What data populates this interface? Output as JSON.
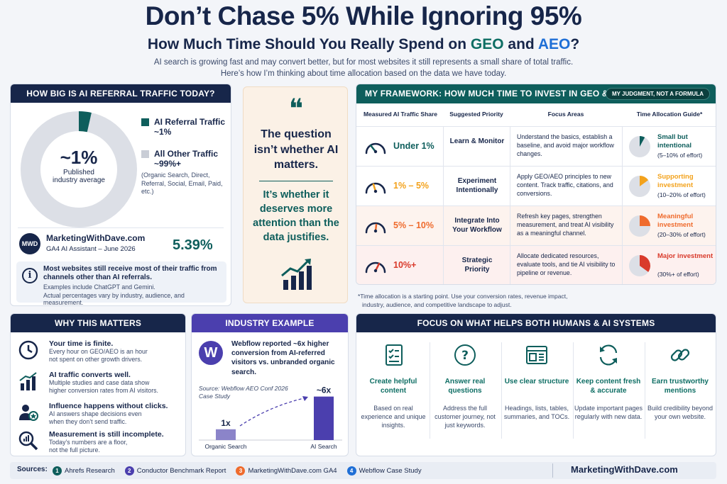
{
  "header": {
    "title": "Don’t Chase 5% While Ignoring 95%",
    "subtitle_pre": "How Much Time Should You Really Spend on ",
    "subtitle_geo": "GEO",
    "subtitle_and": " and ",
    "subtitle_aeo": "AEO",
    "subtitle_q": "?",
    "line1": "AI search is growing fast and may convert better, but for most websites it still represents a small share of total traffic.",
    "line2": "Here’s how I’m thinking about time allocation based on the data we have today."
  },
  "colors": {
    "navy": "#17264a",
    "teal": "#0e5e5c",
    "purple": "#4b3fae",
    "orange": "#f39c12",
    "red": "#d93a2b"
  },
  "referral": {
    "heading": "HOW BIG IS AI REFERRAL TRAFFIC TODAY?",
    "center_value": "~1%",
    "center_label_1": "Published",
    "center_label_2": "industry average",
    "ai_share": 1,
    "legend_ai_title": "AI Referral Traffic",
    "legend_ai_value": "~1%",
    "legend_other_title": "All Other Traffic",
    "legend_other_value": "~99%+",
    "legend_other_note": "(Organic Search, Direct, Referral, Social, Email, Paid, etc.)",
    "logo_text": "MWD",
    "site_name": "MarketingWithDave.com",
    "site_sub": "GA4 AI Assistant – June 2026",
    "site_value": "5.39%",
    "info_title": "Most websites still receive most of their traffic from channels other than AI referrals.",
    "info_line1": "Examples include ChatGPT and Gemini.",
    "info_line2": "Actual percentages vary by industry, audience, and measurement."
  },
  "quote": {
    "mark": "❝",
    "line1": "The question isn’t whether AI matters.",
    "line2": "It’s whether it deserves more attention than the data justifies."
  },
  "framework": {
    "heading": "MY FRAMEWORK: HOW MUCH TIME TO INVEST IN GEO & AEO",
    "badge": "MY JUDGMENT, NOT A FORMULA",
    "columns": [
      "Measured AI Traffic Share",
      "Suggested Priority",
      "Focus Areas",
      "Time Allocation Guide*"
    ],
    "rows": [
      {
        "share": "Under 1%",
        "priority": "Learn & Monitor",
        "focus": "Understand the basics, establish a baseline, and avoid major workflow changes.",
        "alloc_title": "Small but intentional",
        "alloc_range": "(5–10% of effort)",
        "fraction": 0.08,
        "color": "#0e5e5c",
        "bg": "#ffffff"
      },
      {
        "share": "1% – 5%",
        "priority": "Experiment Intentionally",
        "focus": "Apply GEO/AEO principles to new content. Track traffic, citations, and conversions.",
        "alloc_title": "Supporting investment",
        "alloc_range": "(10–20% of effort)",
        "fraction": 0.15,
        "color": "#f3a21c",
        "bg": "#ffffff"
      },
      {
        "share": "5% – 10%",
        "priority": "Integrate Into Your Workflow",
        "focus": "Refresh key pages, strengthen measurement, and treat AI visibility as a meaningful channel.",
        "alloc_title": "Meaningful investment",
        "alloc_range": "(20–30% of effort)",
        "fraction": 0.25,
        "color": "#ef6b2d",
        "bg": "#fdf3ee"
      },
      {
        "share": "10%+",
        "priority": "Strategic Priority",
        "focus": "Allocate dedicated resources, evaluate tools, and tie AI visibility to pipeline or revenue.",
        "alloc_title": "Major investment",
        "alloc_range": "(30%+ of effort)",
        "fraction": 0.35,
        "color": "#d93a2b",
        "bg": "#fdf0ef"
      }
    ],
    "footnote1": "*Time allocation is a starting point. Use your conversion rates, revenue impact,",
    "footnote2": "industry, audience, and competitive landscape to adjust."
  },
  "why": {
    "heading": "WHY THIS MATTERS",
    "items": [
      {
        "icon": "clock-icon",
        "title": "Your time is finite.",
        "desc1": "Every hour on GEO/AEO is an hour",
        "desc2": "not spent on other growth drivers."
      },
      {
        "icon": "chart-up-icon",
        "title": "AI traffic converts well.",
        "desc1": "Multiple studies and case data show",
        "desc2": "higher conversion rates from AI visitors."
      },
      {
        "icon": "users-icon",
        "title": "Influence happens without clicks.",
        "desc1": "AI answers shape decisions even",
        "desc2": "when they don’t send traffic."
      },
      {
        "icon": "magnifier-chart-icon",
        "title": "Measurement is still incomplete.",
        "desc1": "Today’s numbers are a floor,",
        "desc2": "not the full picture."
      }
    ]
  },
  "industry": {
    "heading": "INDUSTRY EXAMPLE",
    "logo": "W",
    "text": "Webflow reported ~6x higher conversion from AI-referred visitors vs. unbranded organic search.",
    "source": "Source: Webflow AEO Conf 2026 Case Study",
    "chart_data": {
      "type": "bar",
      "categories": [
        "Organic Search",
        "AI Search"
      ],
      "values": [
        1,
        6
      ],
      "data_labels": [
        "1x",
        "~6x"
      ],
      "ylim": [
        0,
        6.5
      ]
    }
  },
  "focus": {
    "heading": "FOCUS ON WHAT HELPS BOTH HUMANS & AI SYSTEMS",
    "items": [
      {
        "icon": "checklist-icon",
        "title": "Create helpful content",
        "desc": "Based on real experience and unique insights."
      },
      {
        "icon": "question-icon",
        "title": "Answer real questions",
        "desc": "Address the full customer journey, not just keywords."
      },
      {
        "icon": "layout-icon",
        "title": "Use clear structure",
        "desc": "Headings, lists, tables, summaries, and TOCs."
      },
      {
        "icon": "refresh-icon",
        "title": "Keep content fresh & accurate",
        "desc": "Update important pages regularly with new data."
      },
      {
        "icon": "link-icon",
        "title": "Earn trustworthy mentions",
        "desc": "Build credibility beyond your own website."
      }
    ]
  },
  "footer": {
    "label": "Sources:",
    "sources": [
      {
        "num": "1",
        "name": "Ahrefs Research",
        "color": "#0e5e5c"
      },
      {
        "num": "2",
        "name": "Conductor Benchmark Report",
        "color": "#4b3fae"
      },
      {
        "num": "3",
        "name": "MarketingWithDave.com GA4",
        "color": "#ef6b2d"
      },
      {
        "num": "4",
        "name": "Webflow Case Study",
        "color": "#1f6fd6"
      }
    ],
    "brand": "MarketingWithDave.com"
  }
}
